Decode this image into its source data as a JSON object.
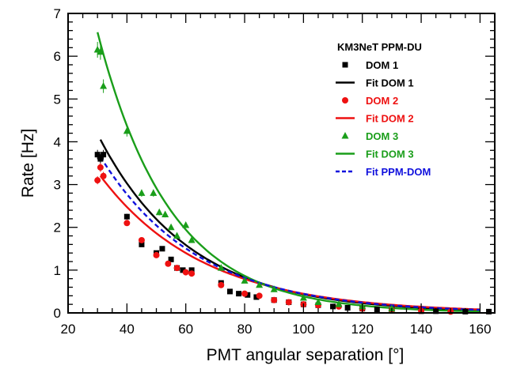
{
  "chart_data": {
    "type": "scatter",
    "title": "",
    "xlabel": "PMT angular separation [°]",
    "ylabel": "Rate [Hz]",
    "xlim": [
      20,
      165
    ],
    "ylim": [
      0,
      7
    ],
    "xticks": [
      20,
      40,
      60,
      80,
      100,
      120,
      140,
      160
    ],
    "yticks": [
      0,
      1,
      2,
      3,
      4,
      5,
      6,
      7
    ],
    "grid": false,
    "legend": {
      "title": "KM3NeT PPM-DU",
      "placement": "top-right",
      "entries": [
        {
          "label": "DOM 1",
          "kind": "square",
          "color": "#000000"
        },
        {
          "label": "Fit DOM 1",
          "kind": "line",
          "color": "#000000"
        },
        {
          "label": "DOM 2",
          "kind": "circle",
          "color": "#ee1111"
        },
        {
          "label": "Fit DOM 2",
          "kind": "line",
          "color": "#ee1111"
        },
        {
          "label": "DOM 3",
          "kind": "triangle",
          "color": "#1a9e1a"
        },
        {
          "label": "Fit DOM 3",
          "kind": "line",
          "color": "#1a9e1a"
        },
        {
          "label": "Fit PPM-DOM",
          "kind": "dashed",
          "color": "#1111dd"
        }
      ]
    },
    "series": [
      {
        "name": "DOM 1",
        "kind": "square",
        "color": "#000000",
        "x": [
          30,
          31,
          32,
          40,
          45,
          50,
          52,
          55,
          57,
          59,
          62,
          72,
          75,
          78,
          81,
          84,
          90,
          95,
          100,
          105,
          110,
          115,
          120,
          125,
          130,
          140,
          145,
          155,
          163
        ],
        "y": [
          3.7,
          3.6,
          3.7,
          2.25,
          1.6,
          1.4,
          1.5,
          1.25,
          1.05,
          1.0,
          1.0,
          0.7,
          0.5,
          0.45,
          0.42,
          0.37,
          0.3,
          0.25,
          0.2,
          0.18,
          0.15,
          0.12,
          0.1,
          0.08,
          0.07,
          0.04,
          0.04,
          0.03,
          0.03
        ]
      },
      {
        "name": "DOM 2",
        "kind": "circle",
        "color": "#ee1111",
        "x": [
          30,
          31,
          32,
          40,
          45,
          50,
          54,
          57,
          60,
          62,
          72,
          80,
          85,
          90,
          95,
          100,
          105,
          112,
          120,
          130,
          140,
          150
        ],
        "y": [
          3.1,
          3.4,
          3.2,
          2.1,
          1.7,
          1.35,
          1.15,
          1.05,
          0.95,
          0.92,
          0.65,
          0.45,
          0.4,
          0.3,
          0.25,
          0.2,
          0.18,
          0.15,
          0.1,
          0.07,
          0.05,
          0.03
        ]
      },
      {
        "name": "DOM 3",
        "kind": "triangle",
        "color": "#1a9e1a",
        "x": [
          30,
          31,
          32,
          40,
          45,
          49,
          51,
          53,
          55,
          57,
          60,
          62,
          72,
          80,
          85,
          90,
          100,
          105,
          112,
          120,
          130
        ],
        "y": [
          6.15,
          6.1,
          5.3,
          4.25,
          2.8,
          2.8,
          2.35,
          2.3,
          2.0,
          1.8,
          2.05,
          1.7,
          1.05,
          0.75,
          0.65,
          0.55,
          0.35,
          0.25,
          0.2,
          0.15,
          0.1
        ]
      }
    ],
    "fits": [
      {
        "name": "Fit DOM 1",
        "color": "#000000",
        "dash": false,
        "amp": 4.05,
        "decay": 0.0323,
        "x0": 31,
        "x1": 160
      },
      {
        "name": "Fit DOM 2",
        "color": "#ee1111",
        "dash": false,
        "amp": 3.2,
        "decay": 0.0285,
        "x0": 31,
        "x1": 160
      },
      {
        "name": "Fit DOM 3",
        "color": "#1a9e1a",
        "dash": false,
        "amp": 6.3,
        "decay": 0.0405,
        "x0": 30,
        "x1": 160
      },
      {
        "name": "Fit PPM-DOM",
        "color": "#1111dd",
        "dash": true,
        "amp": 3.65,
        "decay": 0.0305,
        "x0": 31,
        "x1": 160
      }
    ]
  }
}
